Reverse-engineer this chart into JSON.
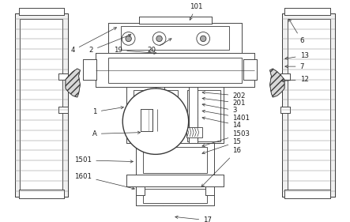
{
  "bg_color": "#ffffff",
  "line_color": "#3a3a3a",
  "label_color": "#1a1a1a",
  "fig_width": 4.43,
  "fig_height": 2.81,
  "dpi": 100,
  "annotation_fontsize": 6.2,
  "lw": 0.6
}
